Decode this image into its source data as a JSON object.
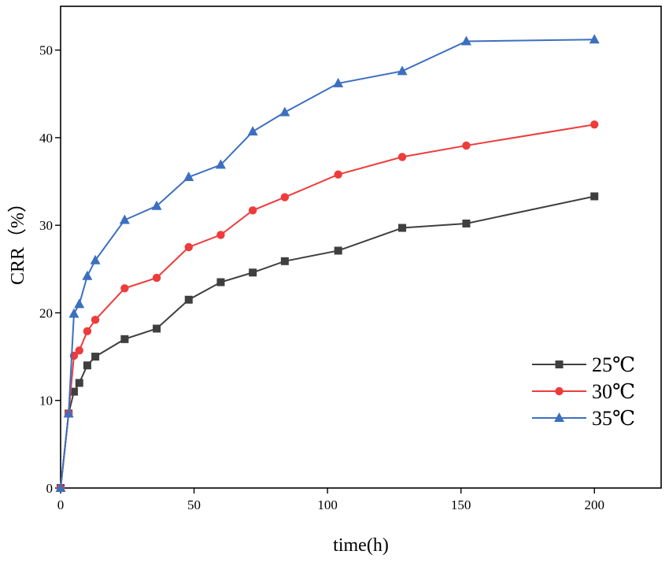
{
  "chart_data": {
    "type": "line",
    "title": "",
    "xlabel": "time(h)",
    "ylabel": "CRR（%）",
    "xlim": [
      0,
      225
    ],
    "ylim": [
      0,
      55
    ],
    "xticks": [
      0,
      50,
      100,
      150,
      200
    ],
    "yticks": [
      0,
      10,
      20,
      30,
      40,
      50
    ],
    "legend_position": "bottom-right",
    "grid": false,
    "x": [
      0,
      3,
      5,
      7,
      10,
      13,
      24,
      36,
      48,
      60,
      72,
      84,
      104,
      128,
      152,
      200
    ],
    "series": [
      {
        "name": "25℃",
        "color": "#3f3f3f",
        "marker": "square",
        "values": [
          0,
          8.5,
          11,
          12,
          14,
          15,
          17,
          18.2,
          21.5,
          23.5,
          24.6,
          25.9,
          27.1,
          29.7,
          30.2,
          33.3
        ]
      },
      {
        "name": "30℃",
        "color": "#ee3b3b",
        "marker": "circle",
        "values": [
          0,
          8.5,
          15.1,
          15.7,
          17.9,
          19.2,
          22.8,
          24,
          27.5,
          28.9,
          31.7,
          33.2,
          35.8,
          37.8,
          39.1,
          41.5
        ]
      },
      {
        "name": "35℃",
        "color": "#3c6fbf",
        "marker": "triangle",
        "values": [
          0,
          8.5,
          19.9,
          21,
          24.2,
          26,
          30.6,
          32.2,
          35.5,
          36.9,
          40.7,
          42.9,
          46.2,
          47.6,
          51,
          51.2
        ]
      }
    ]
  }
}
